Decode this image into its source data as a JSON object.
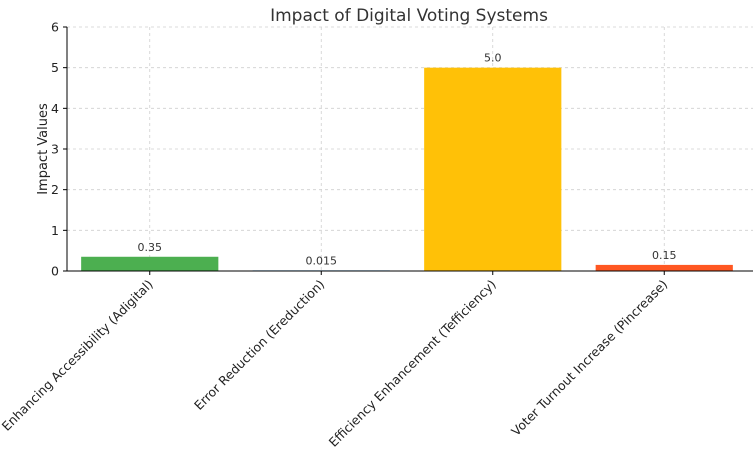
{
  "chart_data": {
    "type": "bar",
    "title": "Impact of Digital Voting Systems",
    "xlabel": "",
    "ylabel": "Impact Values",
    "ylim": [
      0,
      6
    ],
    "yticks": [
      0,
      1,
      2,
      3,
      4,
      5,
      6
    ],
    "grid": true,
    "categories": [
      "Enhancing Accessibility (Adigital)",
      "Error Reduction (Ereduction)",
      "Efficiency Enhancement (Tefficiency)",
      "Voter Turnout Increase (Pincrease)"
    ],
    "values": [
      0.35,
      0.015,
      5.0,
      0.15
    ],
    "value_labels": [
      "0.35",
      "0.015",
      "5.0",
      "0.15"
    ],
    "colors": [
      "#4caf50",
      "#2196f3",
      "#ffc107",
      "#ff5722"
    ]
  }
}
